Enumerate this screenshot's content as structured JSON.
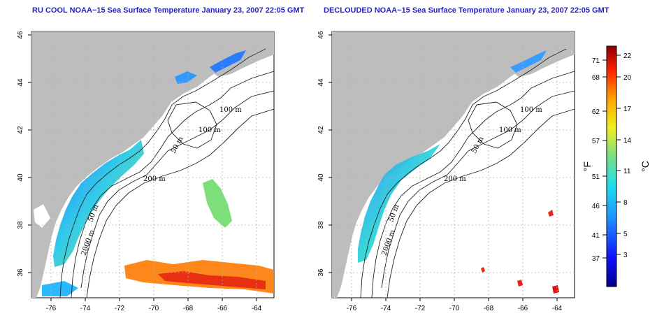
{
  "panels": [
    {
      "title": "RU COOL NOAA−15 Sea Surface Temperature January 23, 2007 22:05 GMT",
      "isobaths": [
        "100 m",
        "100 m",
        "50 m",
        "200 m",
        "50 m",
        "2000 m"
      ]
    },
    {
      "title": "DECLOUDED NOAA−15 Sea Surface Temperature January 23, 2007 22:05 GMT",
      "isobaths": [
        "100 m",
        "100 m",
        "50 m",
        "200 m",
        "50 m",
        "2000 m"
      ]
    }
  ],
  "axes": {
    "lon_ticks": [
      "-76",
      "-74",
      "-72",
      "-70",
      "-68",
      "-66",
      "-64"
    ],
    "lat_ticks": [
      "36",
      "38",
      "40",
      "42",
      "44",
      "46"
    ]
  },
  "colorbar": {
    "fahrenheit_label": "°F",
    "celsius_label": "°C",
    "fahrenheit_ticks": [
      "71",
      "68",
      "62",
      "57",
      "51",
      "46",
      "41",
      "37"
    ],
    "celsius_ticks": [
      "22",
      "20",
      "17",
      "14",
      "11",
      "8",
      "5",
      "3"
    ]
  },
  "colors": {
    "land": "#bdbdbd",
    "ocean": "#ffffff",
    "title": "#1f1fd0",
    "grid": "#b0b0b0"
  }
}
